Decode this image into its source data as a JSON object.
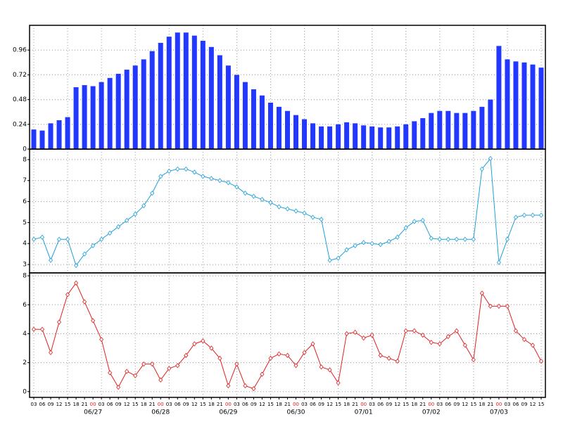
{
  "chart_data": [
    {
      "type": "bar",
      "color": "#2238ff",
      "ylim": [
        0,
        1.2
      ],
      "yticks": [
        0,
        0.24,
        0.48,
        0.72,
        0.96
      ],
      "grid": true,
      "values": [
        0.19,
        0.18,
        0.25,
        0.28,
        0.31,
        0.6,
        0.62,
        0.61,
        0.65,
        0.69,
        0.73,
        0.77,
        0.81,
        0.87,
        0.95,
        1.03,
        1.09,
        1.13,
        1.13,
        1.1,
        1.05,
        0.99,
        0.91,
        0.81,
        0.72,
        0.65,
        0.58,
        0.52,
        0.45,
        0.41,
        0.37,
        0.33,
        0.29,
        0.25,
        0.22,
        0.22,
        0.24,
        0.26,
        0.25,
        0.23,
        0.22,
        0.21,
        0.21,
        0.22,
        0.24,
        0.27,
        0.3,
        0.35,
        0.37,
        0.37,
        0.35,
        0.35,
        0.37,
        0.41,
        0.48,
        1.0,
        0.87,
        0.85,
        0.84,
        0.82,
        0.79
      ]
    },
    {
      "type": "line",
      "color": "#1ea0d8",
      "ylim": [
        2.6,
        8.5
      ],
      "yticks": [
        3,
        4,
        5,
        6,
        7,
        8
      ],
      "grid": true,
      "values": [
        4.2,
        4.3,
        3.2,
        4.2,
        4.2,
        2.95,
        3.5,
        3.9,
        4.2,
        4.5,
        4.8,
        5.1,
        5.4,
        5.8,
        6.4,
        7.2,
        7.45,
        7.55,
        7.55,
        7.4,
        7.2,
        7.1,
        7.0,
        6.9,
        6.7,
        6.4,
        6.25,
        6.1,
        5.95,
        5.75,
        5.65,
        5.55,
        5.45,
        5.25,
        5.15,
        3.2,
        3.3,
        3.7,
        3.9,
        4.05,
        4.0,
        3.95,
        4.1,
        4.3,
        4.75,
        5.05,
        5.1,
        4.25,
        4.2,
        4.2,
        4.2,
        4.2,
        4.2,
        7.55,
        8.05,
        3.1,
        4.2,
        5.25,
        5.35,
        5.35,
        5.35
      ]
    },
    {
      "type": "line",
      "color": "#e02020",
      "ylim": [
        -0.4,
        8.2
      ],
      "yticks": [
        0,
        2,
        4,
        6,
        8
      ],
      "grid": true,
      "values": [
        4.3,
        4.3,
        2.7,
        4.8,
        6.7,
        7.5,
        6.2,
        4.9,
        3.6,
        1.3,
        0.3,
        1.4,
        1.1,
        1.9,
        1.9,
        0.8,
        1.6,
        1.8,
        2.5,
        3.3,
        3.5,
        3.0,
        2.3,
        0.4,
        1.9,
        0.4,
        0.2,
        1.2,
        2.3,
        2.6,
        2.5,
        1.8,
        2.7,
        3.3,
        1.7,
        1.5,
        0.6,
        4.0,
        4.1,
        3.7,
        3.9,
        2.5,
        2.3,
        2.1,
        4.2,
        4.2,
        3.9,
        3.4,
        3.3,
        3.8,
        4.2,
        3.2,
        2.2,
        6.8,
        5.9,
        5.9,
        5.9,
        4.2,
        3.6,
        3.2,
        2.1
      ],
      "categories": [
        "03",
        "06",
        "09",
        "12",
        "15",
        "18",
        "21",
        "00",
        "03",
        "06",
        "09",
        "12",
        "15",
        "18",
        "21",
        "00",
        "03",
        "06",
        "09",
        "12",
        "15",
        "18",
        "21",
        "00",
        "03",
        "06",
        "09",
        "12",
        "15",
        "18",
        "21",
        "00",
        "03",
        "06",
        "09",
        "12",
        "15",
        "18",
        "21",
        "00",
        "03",
        "06",
        "09",
        "12",
        "15",
        "18",
        "21",
        "00",
        "03",
        "06",
        "09",
        "12",
        "15",
        "18",
        "21",
        "00",
        "03",
        "06",
        "09",
        "12",
        "15"
      ],
      "dates": [
        null,
        null,
        null,
        null,
        null,
        null,
        null,
        "06/27",
        null,
        null,
        null,
        null,
        null,
        null,
        null,
        "06/28",
        null,
        null,
        null,
        null,
        null,
        null,
        null,
        "06/29",
        null,
        null,
        null,
        null,
        null,
        null,
        null,
        "06/30",
        null,
        null,
        null,
        null,
        null,
        null,
        null,
        "07/01",
        null,
        null,
        null,
        null,
        null,
        null,
        null,
        "07/02",
        null,
        null,
        null,
        null,
        null,
        null,
        null,
        "07/03",
        null,
        null,
        null,
        null,
        null
      ]
    }
  ]
}
